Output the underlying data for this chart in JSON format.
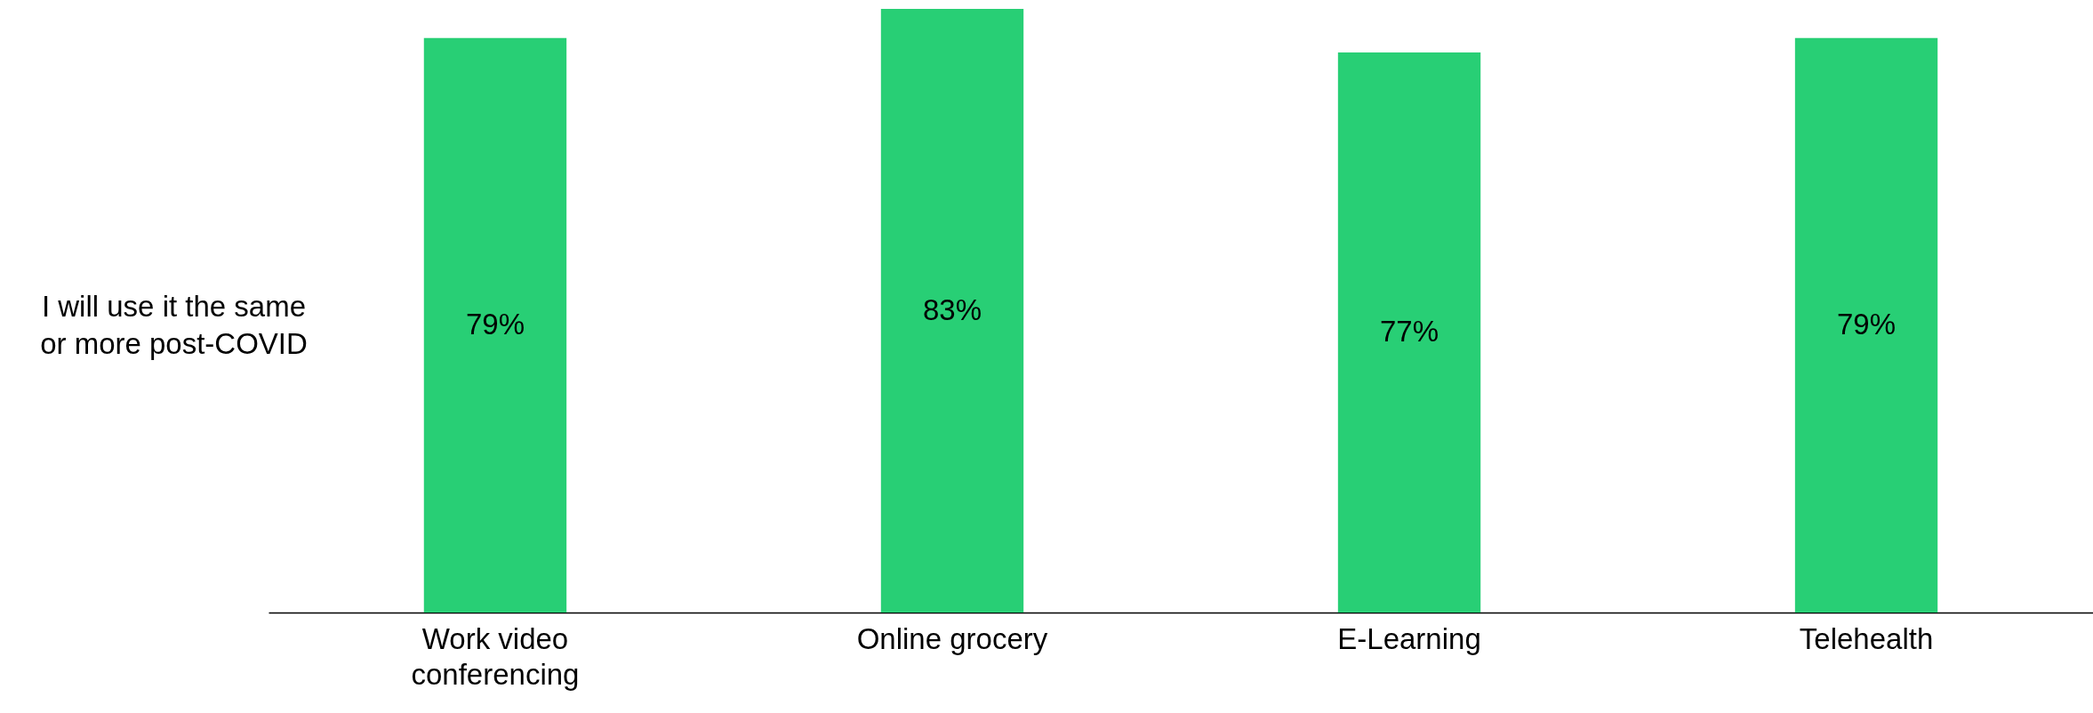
{
  "chart_data": {
    "type": "bar",
    "ylabel": "I will use it the same or more post-COVID",
    "categories": [
      "Work video conferencing",
      "Online grocery",
      "E-Learning",
      "Telehealth"
    ],
    "values": [
      79,
      83,
      77,
      79
    ],
    "value_labels": [
      "79%",
      "83%",
      "77%",
      "79%"
    ],
    "color": "#28cf75",
    "tick_labels": "x"
  }
}
